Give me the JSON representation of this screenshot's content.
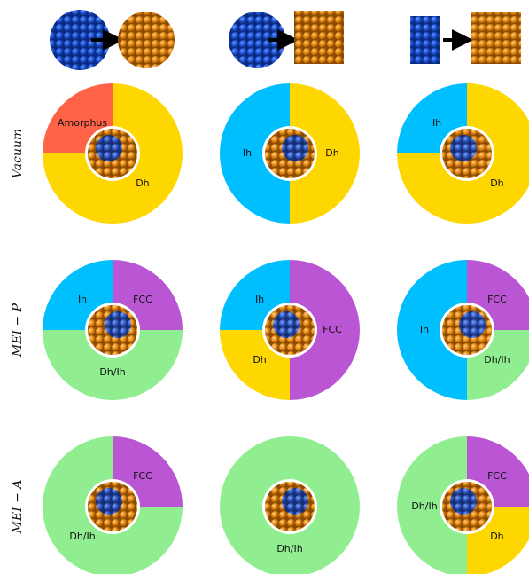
{
  "row_labels": [
    "Vacuum",
    "MEI − P",
    "MEI − A"
  ],
  "chart_data": [
    {
      "type": "donut",
      "categories": [
        "Dh",
        "Amorphus"
      ],
      "values": [
        75,
        25
      ],
      "colors": [
        "#FFD700",
        "#FF6347"
      ]
    },
    {
      "type": "donut",
      "categories": [
        "Dh",
        "Ih"
      ],
      "values": [
        50,
        50
      ],
      "colors": [
        "#FFD700",
        "#00BFFF"
      ]
    },
    {
      "type": "donut",
      "categories": [
        "Dh",
        "Ih"
      ],
      "values": [
        75,
        25
      ],
      "colors": [
        "#FFD700",
        "#00BFFF"
      ]
    },
    {
      "type": "donut",
      "categories": [
        "FCC",
        "Dh/Ih",
        "Ih"
      ],
      "values": [
        25,
        50,
        25
      ],
      "colors": [
        "#BA55D3",
        "#90EE90",
        "#00BFFF"
      ]
    },
    {
      "type": "donut",
      "categories": [
        "FCC",
        "Dh",
        "Ih"
      ],
      "values": [
        50,
        25,
        25
      ],
      "colors": [
        "#BA55D3",
        "#FFD700",
        "#00BFFF"
      ]
    },
    {
      "type": "donut",
      "categories": [
        "FCC",
        "Dh/Ih",
        "Ih"
      ],
      "values": [
        25,
        25,
        50
      ],
      "colors": [
        "#BA55D3",
        "#90EE90",
        "#00BFFF"
      ]
    },
    {
      "type": "donut",
      "categories": [
        "FCC",
        "Dh/Ih"
      ],
      "values": [
        25,
        75
      ],
      "colors": [
        "#BA55D3",
        "#90EE90"
      ]
    },
    {
      "type": "donut",
      "categories": [
        "Dh/Ih"
      ],
      "values": [
        100
      ],
      "colors": [
        "#90EE90"
      ]
    },
    {
      "type": "donut",
      "categories": [
        "FCC",
        "Dh",
        "Dh/Ih"
      ],
      "values": [
        25,
        25,
        50
      ],
      "colors": [
        "#BA55D3",
        "#FFD700",
        "#90EE90"
      ]
    }
  ]
}
